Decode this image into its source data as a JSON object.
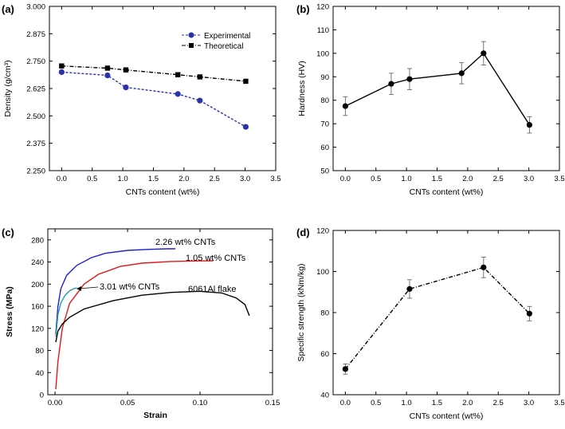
{
  "chart_data": [
    {
      "panel_label": "(a)",
      "type": "line",
      "xlabel": "CNTs content (wt%)",
      "ylabel": "Density (g/cm³)",
      "xlim": [
        -0.2,
        3.5
      ],
      "ylim": [
        2.25,
        3.0
      ],
      "xticks": [
        0.0,
        0.5,
        1.0,
        1.5,
        2.0,
        2.5,
        3.0,
        3.5
      ],
      "xtick_labels": [
        "0.0",
        "0.5",
        "1.0",
        "1.5",
        "2.0",
        "2.5",
        "3.0",
        "3.5"
      ],
      "yticks": [
        2.25,
        2.375,
        2.5,
        2.625,
        2.75,
        2.875,
        3.0
      ],
      "ytick_labels": [
        "2.250",
        "2.375",
        "2.500",
        "2.625",
        "2.750",
        "2.875",
        "3.000"
      ],
      "legend_position": "top-right",
      "series": [
        {
          "name": "Experimental",
          "color": "#2a32a8",
          "marker": "circle",
          "line_style": "dashed",
          "x": [
            0.0,
            0.75,
            1.05,
            1.9,
            2.26,
            3.01
          ],
          "y": [
            2.7,
            2.685,
            2.63,
            2.6,
            2.57,
            2.45
          ]
        },
        {
          "name": "Theoretical",
          "color": "#000000",
          "marker": "square",
          "line_style": "dash-dot",
          "x": [
            0.0,
            0.75,
            1.05,
            1.9,
            2.26,
            3.01
          ],
          "y": [
            2.728,
            2.718,
            2.71,
            2.688,
            2.678,
            2.658
          ]
        }
      ]
    },
    {
      "panel_label": "(b)",
      "type": "line",
      "xlabel": "CNTs content (wt%)",
      "ylabel": "Hardness (HV)",
      "xlim": [
        -0.2,
        3.5
      ],
      "ylim": [
        50,
        120
      ],
      "xticks": [
        0.0,
        0.5,
        1.0,
        1.5,
        2.0,
        2.5,
        3.0,
        3.5
      ],
      "xtick_labels": [
        "0.0",
        "0.5",
        "1.0",
        "1.5",
        "2.0",
        "2.5",
        "3.0",
        "3.5"
      ],
      "yticks": [
        50,
        60,
        70,
        80,
        90,
        100,
        110,
        120
      ],
      "ytick_labels": [
        "50",
        "60",
        "70",
        "80",
        "90",
        "100",
        "110",
        "120"
      ],
      "series": [
        {
          "color": "#000000",
          "marker": "circle",
          "line_style": "solid",
          "x": [
            0.0,
            0.75,
            1.05,
            1.9,
            2.26,
            3.01
          ],
          "y": [
            77.5,
            87.0,
            89.0,
            91.5,
            100.0,
            69.5
          ],
          "error": [
            4.0,
            4.5,
            4.5,
            4.5,
            5.0,
            3.5
          ]
        }
      ]
    },
    {
      "panel_label": "(c)",
      "type": "line",
      "xlabel": "Strain",
      "ylabel": "Stress (MPa)",
      "xlim": [
        -0.005,
        0.15
      ],
      "ylim": [
        0,
        300
      ],
      "xticks": [
        0.0,
        0.05,
        0.1,
        0.15
      ],
      "xtick_labels": [
        "0.00",
        "0.05",
        "0.10",
        "0.15"
      ],
      "yticks": [
        0,
        40,
        80,
        120,
        160,
        200,
        240,
        280
      ],
      "ytick_labels": [
        "0",
        "40",
        "80",
        "120",
        "160",
        "200",
        "240",
        "280"
      ],
      "series": [
        {
          "name": "2.26 wt% CNTs",
          "color": "#1f1fd6",
          "x": [
            0.0005,
            0.002,
            0.004,
            0.008,
            0.015,
            0.025,
            0.035,
            0.05,
            0.065,
            0.078,
            0.083
          ],
          "y": [
            110,
            160,
            192,
            216,
            234,
            248,
            256,
            261,
            263,
            264,
            264
          ]
        },
        {
          "name": "1.05 wt% CNTs",
          "color": "#e01818",
          "x": [
            0.0005,
            0.002,
            0.005,
            0.01,
            0.02,
            0.03,
            0.045,
            0.06,
            0.08,
            0.1,
            0.109
          ],
          "y": [
            10,
            60,
            120,
            165,
            200,
            218,
            232,
            238,
            241,
            242,
            242
          ]
        },
        {
          "name": "3.01 wt% CNTs",
          "color": "#2a9aa8",
          "x": [
            0.0005,
            0.002,
            0.004,
            0.007,
            0.01,
            0.013,
            0.015
          ],
          "y": [
            105,
            145,
            166,
            180,
            188,
            192,
            193
          ]
        },
        {
          "name": "6061Al flake",
          "color": "#000000",
          "x": [
            0.0005,
            0.002,
            0.005,
            0.01,
            0.02,
            0.04,
            0.06,
            0.08,
            0.1,
            0.115,
            0.125,
            0.131,
            0.134
          ],
          "y": [
            95,
            115,
            128,
            140,
            155,
            170,
            180,
            185,
            187,
            184,
            175,
            163,
            143
          ]
        }
      ]
    },
    {
      "panel_label": "(d)",
      "type": "line",
      "xlabel": "CNTs content (wt%)",
      "ylabel": "Specific strength (kNm/kg)",
      "xlim": [
        -0.2,
        3.5
      ],
      "ylim": [
        40,
        120
      ],
      "xticks": [
        0.0,
        0.5,
        1.0,
        1.5,
        2.0,
        2.5,
        3.0,
        3.5
      ],
      "xtick_labels": [
        "0.0",
        "0.5",
        "1.0",
        "1.5",
        "2.0",
        "2.5",
        "3.0",
        "3.5"
      ],
      "yticks": [
        40,
        60,
        80,
        100,
        120
      ],
      "ytick_labels": [
        "40",
        "60",
        "80",
        "100",
        "120"
      ],
      "series": [
        {
          "color": "#000000",
          "marker": "circle",
          "line_style": "dash-dot",
          "x": [
            0.0,
            1.05,
            2.26,
            3.01
          ],
          "y": [
            52.5,
            91.5,
            102.0,
            79.5
          ],
          "error": [
            2.5,
            4.5,
            5.0,
            3.5
          ]
        }
      ]
    }
  ]
}
